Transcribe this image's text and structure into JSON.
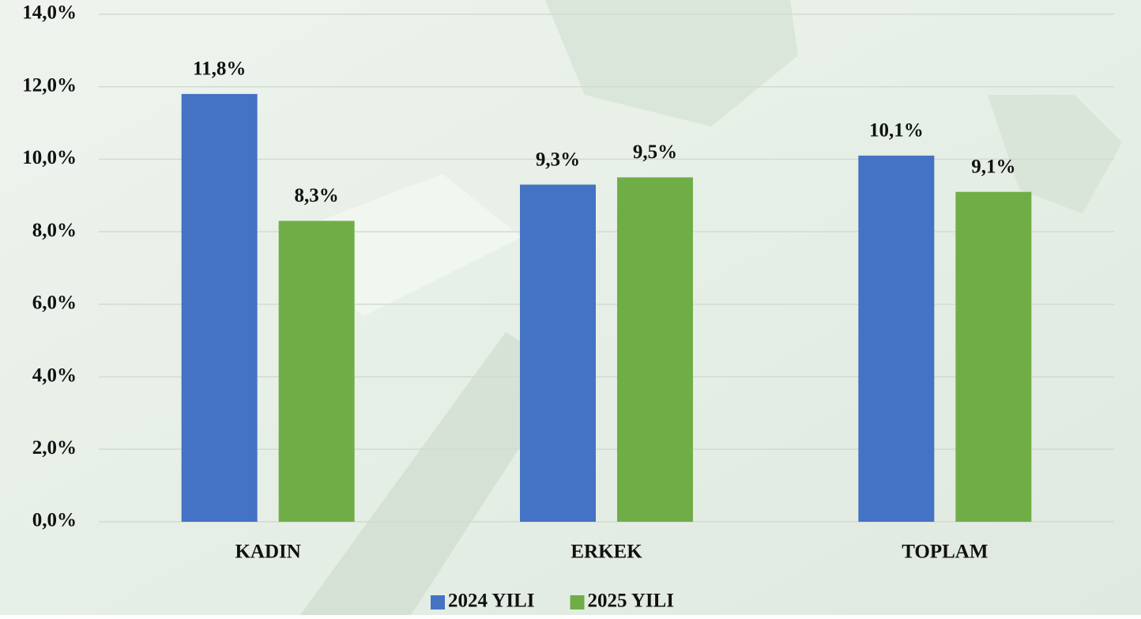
{
  "chart_data": {
    "type": "bar",
    "categories": [
      "KADIN",
      "ERKEK",
      "TOPLAM"
    ],
    "series": [
      {
        "name": "2024 YILI",
        "color": "#4472c4",
        "values": [
          11.8,
          9.3,
          10.1
        ],
        "value_labels": [
          "11,8%",
          "9,3%",
          "10,1%"
        ]
      },
      {
        "name": "2025 YILI",
        "color": "#70ad47",
        "values": [
          8.3,
          9.5,
          9.1
        ],
        "value_labels": [
          "8,3%",
          "9,5%",
          "9,1%"
        ]
      }
    ],
    "ylim": [
      0,
      14
    ],
    "yticks": [
      {
        "value": 0,
        "label": "0,0%"
      },
      {
        "value": 2,
        "label": "2,0%"
      },
      {
        "value": 4,
        "label": "4,0%"
      },
      {
        "value": 6,
        "label": "6,0%"
      },
      {
        "value": 8,
        "label": "8,0%"
      },
      {
        "value": 10,
        "label": "10,0%"
      },
      {
        "value": 12,
        "label": "12,0%"
      },
      {
        "value": 14,
        "label": "14,0%"
      }
    ],
    "grid": true,
    "legend": "bottom"
  }
}
